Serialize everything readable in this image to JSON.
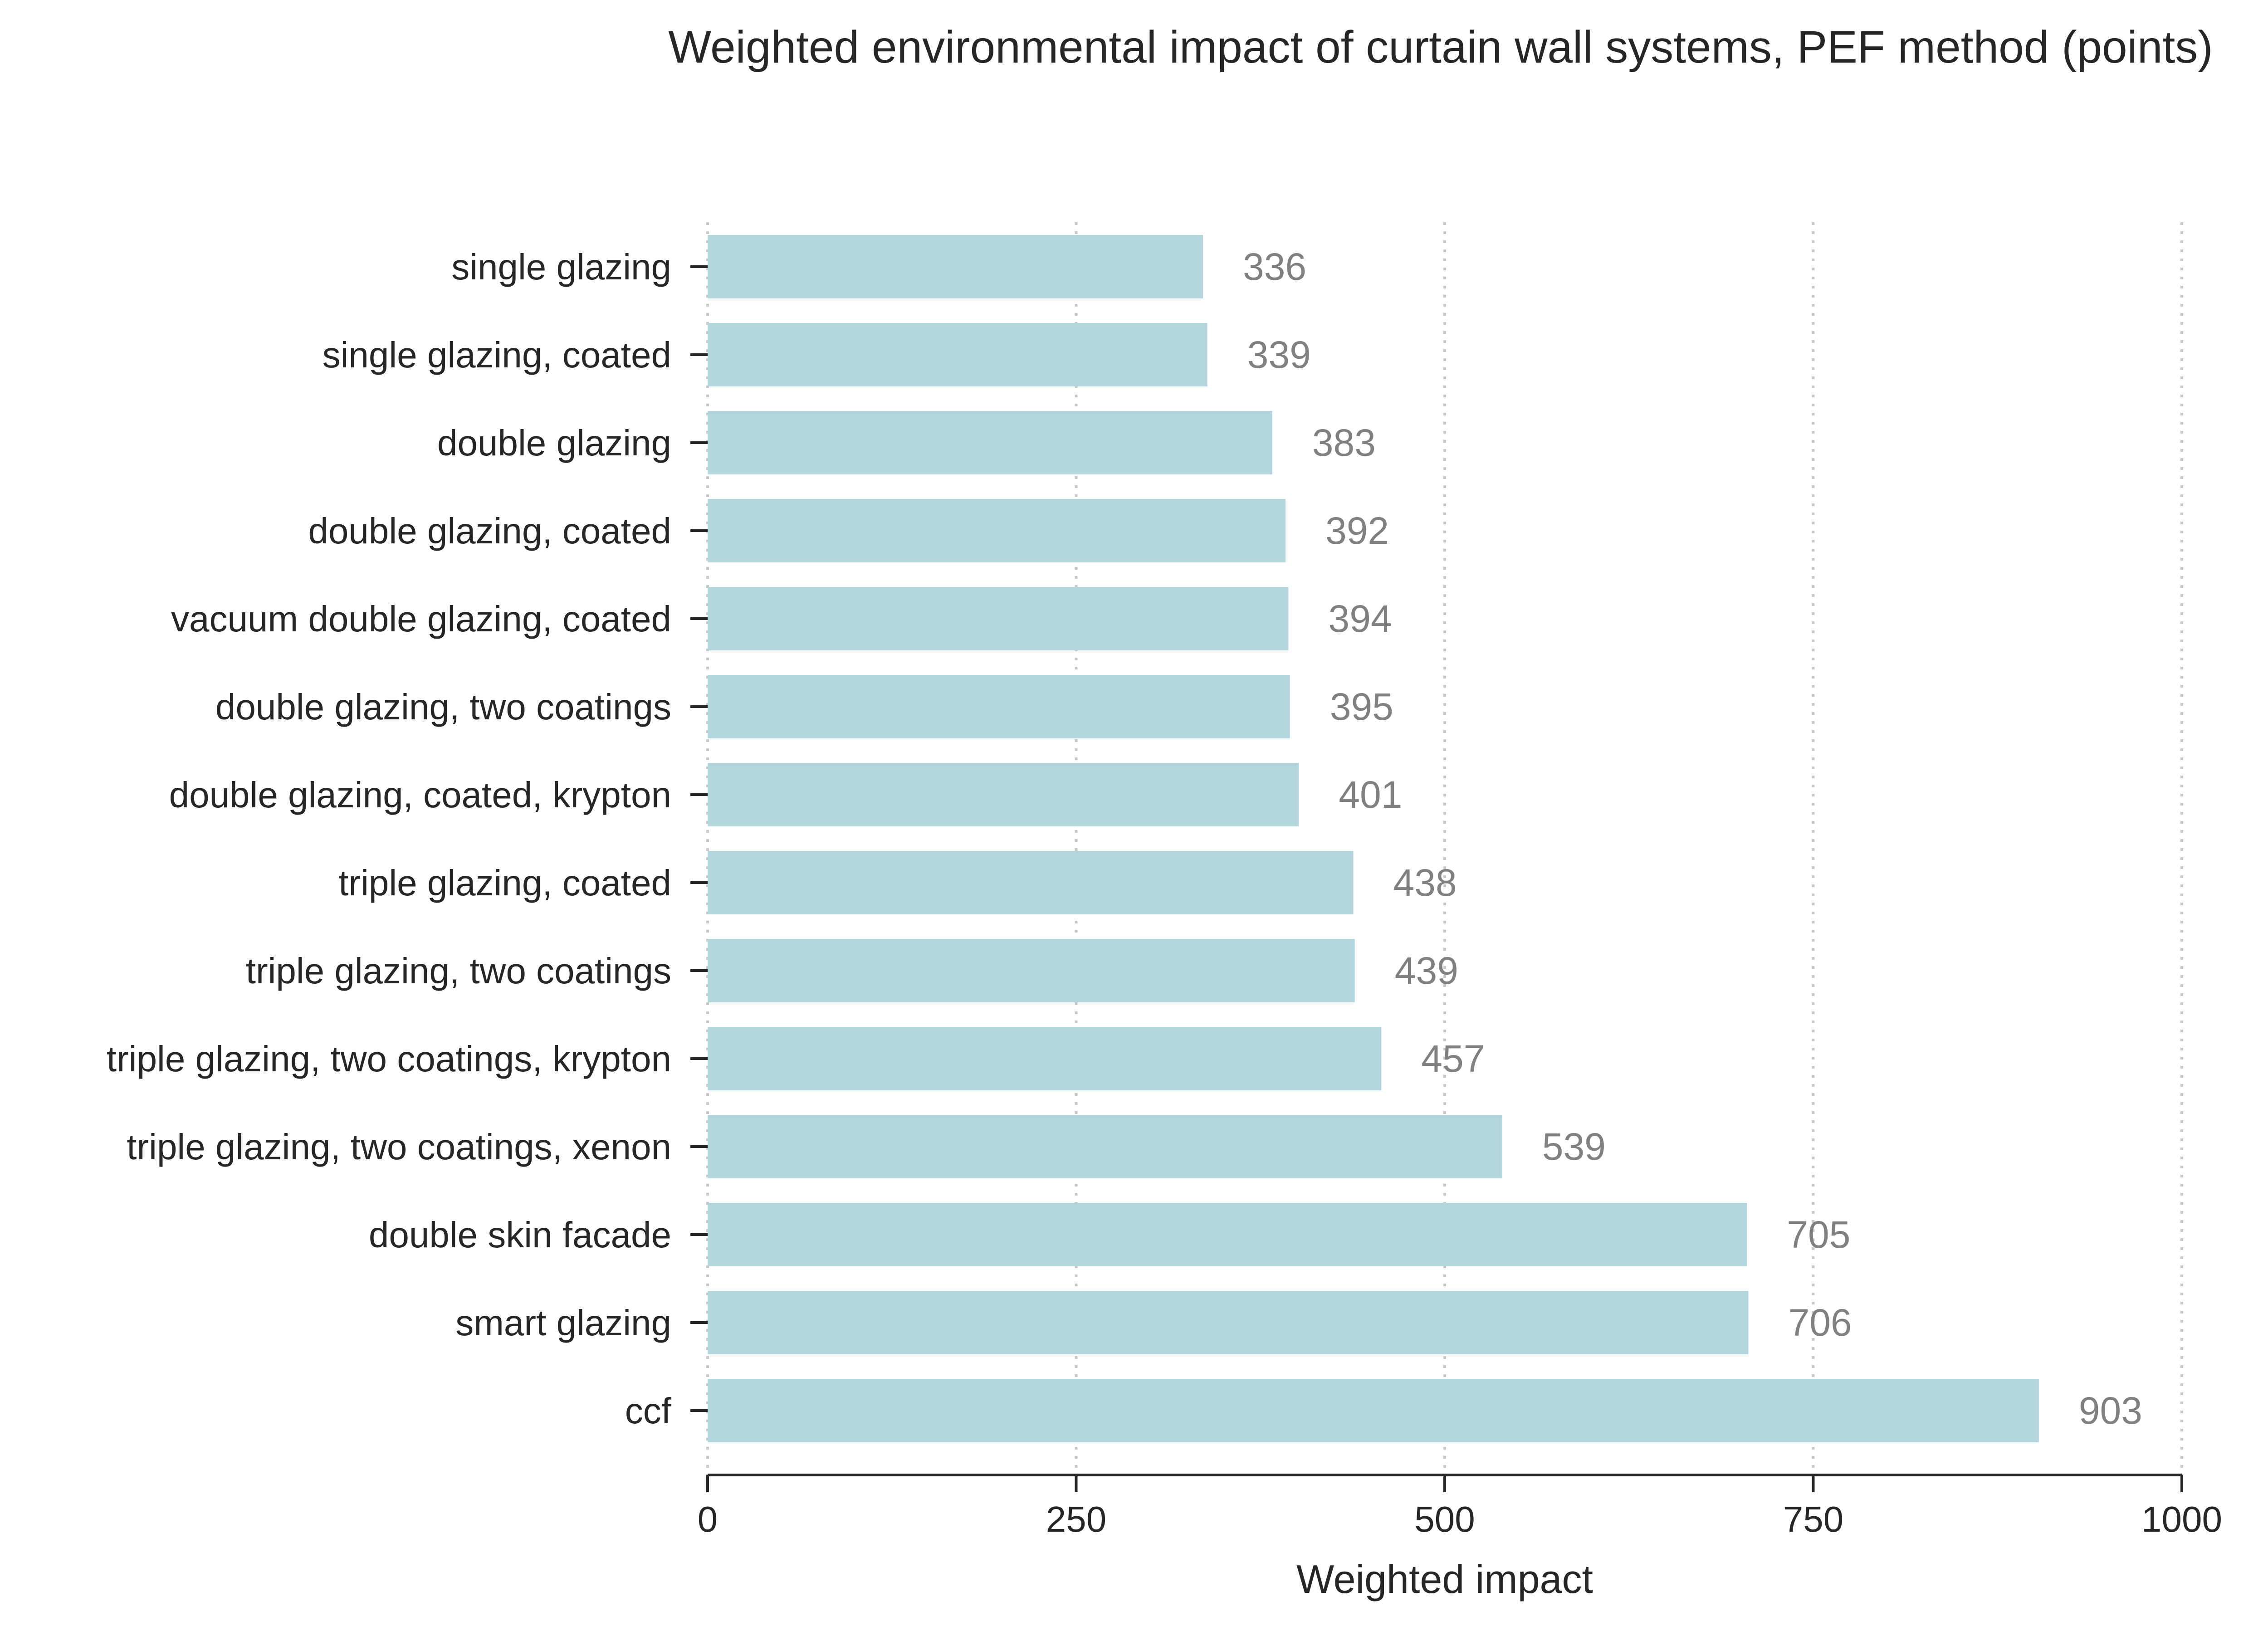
{
  "chart_data": {
    "type": "bar",
    "orientation": "horizontal",
    "title": "Weighted environmental impact of curtain wall systems, PEF method (points)",
    "xlabel": "Weighted impact",
    "ylabel": "",
    "xlim": [
      0,
      1000
    ],
    "x_ticks": [
      0,
      250,
      500,
      750,
      1000
    ],
    "x_tick_labels": [
      "0",
      "250",
      "500",
      "750",
      "1000"
    ],
    "grid": "vertical dotted",
    "bar_color": "#b4d5de",
    "value_label_color": "#808080",
    "categories": [
      "single glazing",
      "single glazing, coated",
      "double glazing",
      "double glazing, coated",
      "vacuum double glazing, coated",
      "double glazing, two coatings",
      "double glazing, coated, krypton",
      "triple glazing, coated",
      "triple glazing, two coatings",
      "triple glazing, two coatings, krypton",
      "triple glazing, two coatings, xenon",
      "double skin facade",
      "smart glazing",
      "ccf"
    ],
    "values": [
      336,
      339,
      383,
      392,
      394,
      395,
      401,
      438,
      439,
      457,
      539,
      705,
      706,
      903
    ],
    "value_labels": [
      "336",
      "339",
      "383",
      "392",
      "394",
      "395",
      "401",
      "438",
      "439",
      "457",
      "539",
      "705",
      "706",
      "903"
    ]
  }
}
